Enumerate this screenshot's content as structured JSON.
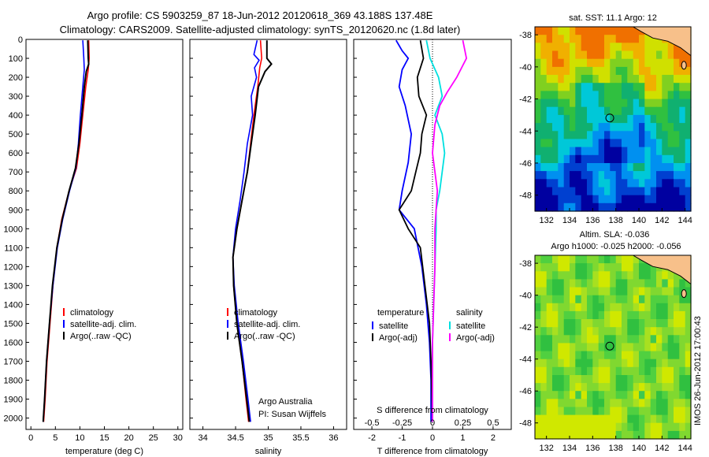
{
  "header": {
    "line1": "Argo profile: CS 5903259_87 18-Jun-2012 20120618_369 43.188S 137.48E",
    "line2": "Climatology: CARS2009. Satellite-adjusted climatology: synTS_20120620.nc (1.8d later)"
  },
  "stamp": "IMOS 26-Jun-2012 17:00:43",
  "colors": {
    "climatology": "#ff0000",
    "satellite": "#0000ff",
    "argo": "#000000",
    "sal_satellite": "#00e0e0",
    "sal_argo": "#ff00ff",
    "land": "#f7c08a"
  },
  "chart_data": [
    {
      "type": "line",
      "panel": "temperature",
      "xlabel": "temperature (deg C)",
      "xlim": [
        -1,
        31
      ],
      "xticks": [
        0,
        5,
        10,
        15,
        20,
        25,
        30
      ],
      "ylim": [
        2060,
        0
      ],
      "yticks": [
        0,
        100,
        200,
        300,
        400,
        500,
        600,
        700,
        800,
        900,
        1000,
        1100,
        1200,
        1300,
        1400,
        1500,
        1600,
        1700,
        1800,
        1900,
        2000
      ],
      "legend": [
        "climatology",
        "satellite-adj. clim.",
        "Argo(..raw -QC)"
      ],
      "series": [
        {
          "name": "climatology",
          "points": [
            [
              11.8,
              5
            ],
            [
              11.9,
              100
            ],
            [
              11.7,
              160
            ],
            [
              11.2,
              250
            ],
            [
              10.6,
              400
            ],
            [
              10,
              550
            ],
            [
              9.3,
              680
            ],
            [
              7.8,
              800
            ],
            [
              6.3,
              950
            ],
            [
              5.3,
              1100
            ],
            [
              4.5,
              1300
            ],
            [
              3.9,
              1500
            ],
            [
              3.3,
              1700
            ],
            [
              2.9,
              1900
            ],
            [
              2.6,
              2020
            ]
          ]
        },
        {
          "name": "satellite-adj. clim.",
          "points": [
            [
              10.6,
              5
            ],
            [
              10.8,
              100
            ],
            [
              10.9,
              160
            ],
            [
              10.6,
              250
            ],
            [
              10.1,
              400
            ],
            [
              9.7,
              550
            ],
            [
              9.2,
              680
            ],
            [
              7.9,
              800
            ],
            [
              6.5,
              950
            ],
            [
              5.4,
              1100
            ],
            [
              4.5,
              1300
            ],
            [
              3.8,
              1500
            ],
            [
              3.2,
              1700
            ],
            [
              2.8,
              1900
            ],
            [
              2.5,
              2020
            ]
          ]
        },
        {
          "name": "Argo(..raw -QC)",
          "points": [
            [
              11.6,
              5
            ],
            [
              11.7,
              100
            ],
            [
              11.8,
              130
            ],
            [
              11.3,
              170
            ],
            [
              10.9,
              250
            ],
            [
              10.4,
              400
            ],
            [
              9.8,
              550
            ],
            [
              9.1,
              680
            ],
            [
              7.8,
              800
            ],
            [
              6.4,
              950
            ],
            [
              5.3,
              1100
            ],
            [
              4.4,
              1300
            ],
            [
              3.8,
              1500
            ],
            [
              3.2,
              1700
            ],
            [
              2.8,
              1900
            ],
            [
              2.5,
              2020
            ]
          ]
        }
      ]
    },
    {
      "type": "line",
      "panel": "salinity",
      "xlabel": "salinity",
      "xlim": [
        33.8,
        36.2
      ],
      "xticks": [
        34,
        34.5,
        35,
        35.5,
        36
      ],
      "ylim": [
        2060,
        0
      ],
      "legend": [
        "climatology",
        "satellite-adj. clim.",
        "Argo(..raw -QC)"
      ],
      "notes": [
        "Argo Australia",
        "PI: Susan Wijffels"
      ],
      "series": [
        {
          "name": "climatology",
          "points": [
            [
              34.88,
              5
            ],
            [
              34.9,
              100
            ],
            [
              34.87,
              150
            ],
            [
              34.84,
              250
            ],
            [
              34.78,
              400
            ],
            [
              34.73,
              550
            ],
            [
              34.68,
              700
            ],
            [
              34.6,
              850
            ],
            [
              34.52,
              1000
            ],
            [
              34.46,
              1150
            ],
            [
              34.47,
              1300
            ],
            [
              34.52,
              1500
            ],
            [
              34.6,
              1700
            ],
            [
              34.66,
              1900
            ],
            [
              34.7,
              2020
            ]
          ]
        },
        {
          "name": "satellite-adj. clim.",
          "points": [
            [
              34.83,
              5
            ],
            [
              34.78,
              80
            ],
            [
              34.86,
              110
            ],
            [
              34.79,
              150
            ],
            [
              34.82,
              200
            ],
            [
              34.74,
              300
            ],
            [
              34.76,
              400
            ],
            [
              34.68,
              550
            ],
            [
              34.63,
              700
            ],
            [
              34.57,
              850
            ],
            [
              34.5,
              1000
            ],
            [
              34.46,
              1150
            ],
            [
              34.48,
              1300
            ],
            [
              34.54,
              1500
            ],
            [
              34.62,
              1700
            ],
            [
              34.69,
              1900
            ],
            [
              34.73,
              2020
            ]
          ]
        },
        {
          "name": "Argo(..raw -QC)",
          "points": [
            [
              34.98,
              5
            ],
            [
              34.98,
              100
            ],
            [
              35.05,
              130
            ],
            [
              34.95,
              170
            ],
            [
              34.85,
              250
            ],
            [
              34.8,
              400
            ],
            [
              34.74,
              550
            ],
            [
              34.68,
              700
            ],
            [
              34.6,
              850
            ],
            [
              34.52,
              1000
            ],
            [
              34.46,
              1150
            ],
            [
              34.47,
              1300
            ],
            [
              34.52,
              1500
            ],
            [
              34.6,
              1700
            ],
            [
              34.67,
              1900
            ],
            [
              34.71,
              2020
            ]
          ]
        }
      ]
    },
    {
      "type": "line",
      "panel": "difference",
      "xlabel": "T difference from climatology",
      "xlabel2": "S difference from climatology",
      "xlim": [
        -2.6,
        2.6
      ],
      "xticks": [
        -2,
        -1,
        0,
        1,
        2
      ],
      "xticks2_labels": [
        "-0.5",
        "-0.25",
        "0",
        "0.25",
        "0.5"
      ],
      "ylim": [
        2060,
        0
      ],
      "legend_left_title": "temperature",
      "legend_right_title": "salinity",
      "legend": [
        "satellite",
        "Argo(-adj)",
        "satellite",
        "Argo(-adj)"
      ],
      "series": [
        {
          "name": "satellite",
          "quantity": "temperature",
          "points": [
            [
              -1.2,
              5
            ],
            [
              -1.0,
              60
            ],
            [
              -0.8,
              100
            ],
            [
              -1.0,
              160
            ],
            [
              -1.1,
              250
            ],
            [
              -0.9,
              350
            ],
            [
              -0.7,
              500
            ],
            [
              -0.8,
              650
            ],
            [
              -1.0,
              800
            ],
            [
              -1.1,
              900
            ],
            [
              -0.6,
              1000
            ],
            [
              -0.35,
              1200
            ],
            [
              -0.2,
              1400
            ],
            [
              -0.1,
              1600
            ],
            [
              -0.05,
              1800
            ],
            [
              -0.05,
              2020
            ]
          ]
        },
        {
          "name": "Argo(-adj)",
          "quantity": "temperature",
          "points": [
            [
              -0.4,
              5
            ],
            [
              -0.3,
              100
            ],
            [
              -0.5,
              200
            ],
            [
              -0.45,
              300
            ],
            [
              -0.2,
              400
            ],
            [
              -0.35,
              500
            ],
            [
              -0.4,
              600
            ],
            [
              -0.55,
              700
            ],
            [
              -0.7,
              800
            ],
            [
              -1.1,
              900
            ],
            [
              -0.8,
              1000
            ],
            [
              -0.4,
              1100
            ],
            [
              -0.25,
              1300
            ],
            [
              -0.1,
              1500
            ],
            [
              -0.05,
              1700
            ],
            [
              0,
              2020
            ]
          ]
        },
        {
          "name": "satellite",
          "quantity": "salinity",
          "points": [
            [
              -0.05,
              5
            ],
            [
              -0.02,
              100
            ],
            [
              0.05,
              200
            ],
            [
              0.08,
              300
            ],
            [
              0.02,
              400
            ],
            [
              0.08,
              500
            ],
            [
              0.1,
              600
            ],
            [
              0.08,
              700
            ],
            [
              0.06,
              800
            ],
            [
              0.03,
              900
            ],
            [
              0.03,
              1000
            ],
            [
              0.02,
              1200
            ],
            [
              0.01,
              1400
            ],
            [
              0,
              1600
            ],
            [
              0,
              1800
            ],
            [
              0,
              2020
            ]
          ]
        },
        {
          "name": "Argo(-adj)",
          "quantity": "salinity",
          "points": [
            [
              0.25,
              5
            ],
            [
              0.28,
              100
            ],
            [
              0.2,
              200
            ],
            [
              0.12,
              280
            ],
            [
              0.06,
              350
            ],
            [
              0.02,
              450
            ],
            [
              0,
              600
            ],
            [
              0.02,
              700
            ],
            [
              0.04,
              800
            ],
            [
              0.03,
              900
            ],
            [
              0.02,
              1000
            ],
            [
              0.02,
              1200
            ],
            [
              0.01,
              1400
            ],
            [
              0,
              1600
            ],
            [
              0,
              1800
            ],
            [
              0,
              2020
            ]
          ]
        }
      ]
    },
    {
      "type": "heatmap",
      "panel": "sst-map",
      "title": "sat. SST: 11.1  Argo: 12",
      "xlim": [
        131,
        144.5
      ],
      "xticks": [
        132,
        134,
        136,
        138,
        140,
        142,
        144
      ],
      "ylim": [
        -49,
        -37.5
      ],
      "yticks": [
        -38,
        -40,
        -42,
        -44,
        -46,
        -48
      ],
      "marker": {
        "lon": 137.48,
        "lat": -43.188
      }
    },
    {
      "type": "heatmap",
      "panel": "sla-map",
      "title": "Altim. SLA: -0.036",
      "subtitle": "Argo h1000: -0.025 h2000: -0.056",
      "xlim": [
        131,
        144.5
      ],
      "xticks": [
        132,
        134,
        136,
        138,
        140,
        142,
        144
      ],
      "ylim": [
        -49,
        -37.5
      ],
      "yticks": [
        -38,
        -40,
        -42,
        -44,
        -46,
        -48
      ],
      "marker": {
        "lon": 137.48,
        "lat": -43.188
      }
    }
  ]
}
